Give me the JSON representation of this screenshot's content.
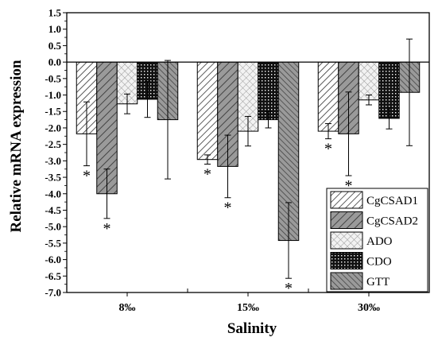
{
  "chart_data": {
    "type": "bar",
    "xlabel": "Salinity",
    "ylabel": "Relative mRNA expression",
    "categories": [
      "8‰",
      "15‰",
      "30‰"
    ],
    "ylim": [
      -7.0,
      1.5
    ],
    "ytick_step": 0.5,
    "legend_position": "bottom-right",
    "grid": false,
    "series": [
      {
        "name": "CgCSAD1",
        "values": [
          -2.18,
          -2.96,
          -2.1
        ],
        "errors": [
          0.97,
          0.14,
          0.23
        ],
        "significant": [
          true,
          true,
          true
        ],
        "pattern": "hatch-fine",
        "color": "#9a9a9a"
      },
      {
        "name": "CgCSAD2",
        "values": [
          -4.0,
          -3.17,
          -2.18
        ],
        "errors": [
          0.75,
          0.95,
          1.27
        ],
        "significant": [
          true,
          true,
          true
        ],
        "pattern": "hatch-coarse",
        "color": "#8c8c8c"
      },
      {
        "name": "ADO",
        "values": [
          -1.27,
          -2.1,
          -1.15
        ],
        "errors": [
          0.3,
          0.45,
          0.15
        ],
        "significant": [
          false,
          false,
          false
        ],
        "pattern": "crosshatch",
        "color": "#e8e8e8"
      },
      {
        "name": "CDO",
        "values": [
          -1.13,
          -1.75,
          -1.71
        ],
        "errors": [
          0.55,
          0.25,
          0.32
        ],
        "significant": [
          false,
          false,
          false
        ],
        "pattern": "dots",
        "color": "#111111"
      },
      {
        "name": "GTT",
        "values": [
          -1.75,
          -5.42,
          -0.92
        ],
        "errors": [
          1.8,
          1.15,
          1.62
        ],
        "significant": [
          false,
          true,
          false
        ],
        "pattern": "hatch-dense",
        "color": "#8c8c8c"
      }
    ],
    "significance_marker": "*"
  }
}
